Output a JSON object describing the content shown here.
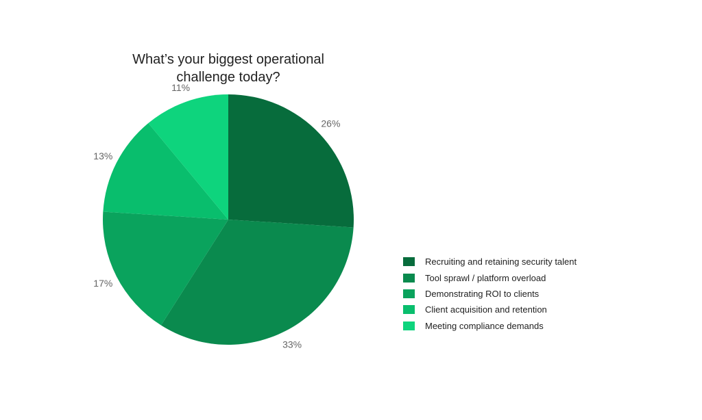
{
  "chart_data": {
    "type": "pie",
    "title": "What’s your biggest operational challenge today?",
    "categories": [
      "Recruiting and retaining security talent",
      "Tool sprawl / platform overload",
      "Demonstrating ROI to clients",
      "Client acquisition and retention",
      "Meeting compliance demands"
    ],
    "values": [
      26,
      33,
      17,
      13,
      11
    ],
    "labels": [
      "26%",
      "33%",
      "17%",
      "13%",
      "11%"
    ],
    "colors": [
      "#076c3c",
      "#0a8a4e",
      "#0aa35d",
      "#09be6d",
      "#0ed47d"
    ],
    "unit": "%",
    "start_angle_deg": 0,
    "direction": "clockwise",
    "legend_position": "right",
    "slice_label_color": "#656565",
    "title_color": "#212121",
    "background": "#ffffff"
  }
}
